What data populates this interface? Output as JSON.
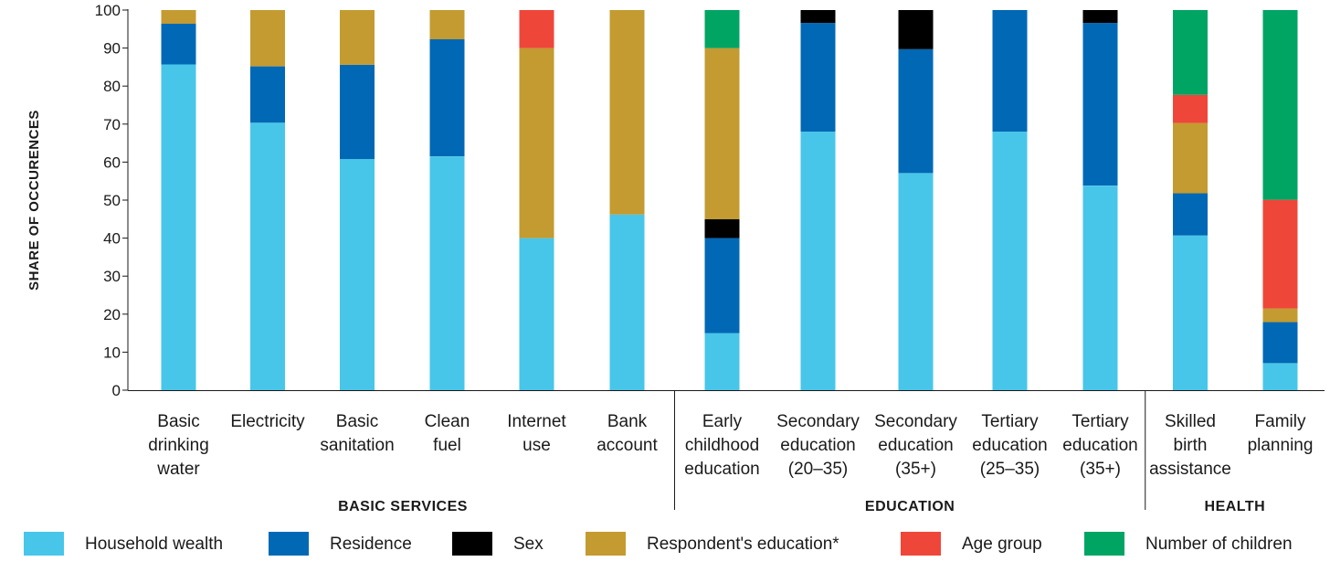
{
  "chart_data": {
    "type": "bar",
    "stacked": true,
    "ylabel": "SHARE OF OCCURENCES",
    "ylim": [
      0,
      100
    ],
    "yticks": [
      0,
      10,
      20,
      30,
      40,
      50,
      60,
      70,
      80,
      90,
      100
    ],
    "categories": [
      [
        "Basic",
        "drinking",
        "water"
      ],
      [
        "Electricity"
      ],
      [
        "Basic",
        "sanitation"
      ],
      [
        "Clean",
        "fuel"
      ],
      [
        "Internet",
        "use"
      ],
      [
        "Bank",
        "account"
      ],
      [
        "Early",
        "childhood",
        "education"
      ],
      [
        "Secondary",
        "education",
        "(20–35)"
      ],
      [
        "Secondary",
        "education",
        "(35+)"
      ],
      [
        "Tertiary",
        "education",
        "(25–35)"
      ],
      [
        "Tertiary",
        "education",
        "(35+)"
      ],
      [
        "Skilled",
        "birth",
        "assistance"
      ],
      [
        "Family",
        "planning"
      ]
    ],
    "groups": [
      {
        "label": "BASIC SERVICES",
        "from": 0,
        "to": 5
      },
      {
        "label": "EDUCATION",
        "from": 6,
        "to": 10
      },
      {
        "label": "HEALTH",
        "from": 11,
        "to": 12
      }
    ],
    "series": [
      {
        "name": "Household wealth",
        "color": "#47c6ea",
        "values": [
          85.7,
          70.4,
          60.8,
          61.5,
          40.0,
          46.2,
          15.0,
          68.0,
          57.1,
          68.0,
          53.8,
          40.7,
          7.1
        ]
      },
      {
        "name": "Residence",
        "color": "#0068b5",
        "values": [
          10.7,
          14.8,
          24.8,
          30.8,
          0,
          0,
          25.0,
          28.6,
          32.6,
          32.0,
          42.8,
          11.1,
          10.8
        ]
      },
      {
        "name": "Sex",
        "color": "#000000",
        "values": [
          0,
          0,
          0,
          0,
          0,
          0,
          5.0,
          3.4,
          10.3,
          0,
          3.4,
          0,
          0
        ]
      },
      {
        "name": "Respondent's education*",
        "color": "#c39b30",
        "values": [
          3.6,
          14.8,
          14.4,
          7.7,
          50.0,
          53.8,
          45.0,
          0,
          0,
          0,
          0,
          18.5,
          3.6
        ]
      },
      {
        "name": "Age group",
        "color": "#ef463a",
        "values": [
          0,
          0,
          0,
          0,
          10.0,
          0,
          0,
          0,
          0,
          0,
          0,
          7.4,
          28.6
        ]
      },
      {
        "name": "Number of children",
        "color": "#00a564",
        "values": [
          0,
          0,
          0,
          0,
          0,
          0,
          10.0,
          0,
          0,
          0,
          0,
          22.3,
          49.9
        ]
      }
    ],
    "legend_position": "bottom",
    "grid": false
  }
}
